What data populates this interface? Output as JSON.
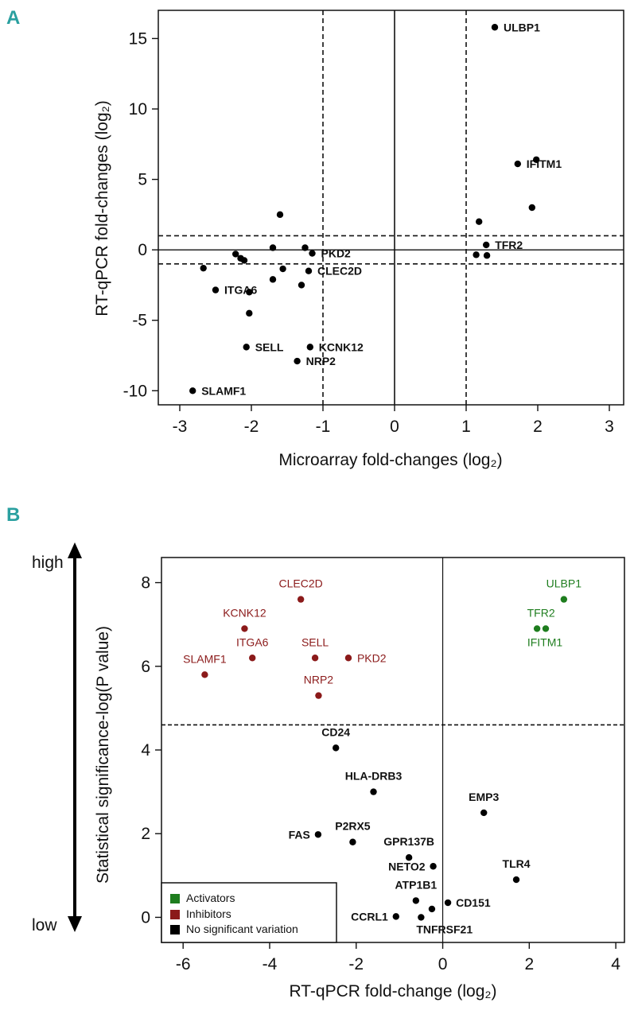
{
  "chart_data": [
    {
      "panel": "A",
      "type": "scatter",
      "xlabel": "Microarray fold-changes (log₂)",
      "ylabel": "RT-qPCR fold-changes (log₂)",
      "xlim": [
        -3.3,
        3.2
      ],
      "ylim": [
        -11,
        17
      ],
      "xticks": [
        -3,
        -2,
        -1,
        0,
        1,
        2,
        3
      ],
      "yticks": [
        -10,
        -5,
        0,
        5,
        10,
        15
      ],
      "vlines_dashed": [
        -1,
        1
      ],
      "vline_solid": 0,
      "hlines_dashed": [
        1,
        -1
      ],
      "hline_solid": 0,
      "points": [
        {
          "x": 1.4,
          "y": 15.8,
          "label": "ULBP1"
        },
        {
          "x": 1.72,
          "y": 6.1,
          "label": "IFITM1"
        },
        {
          "x": 1.98,
          "y": 6.4,
          "label": ""
        },
        {
          "x": 1.92,
          "y": 3.0,
          "label": ""
        },
        {
          "x": 1.18,
          "y": 2.0,
          "label": ""
        },
        {
          "x": 1.28,
          "y": 0.35,
          "label": "TFR2"
        },
        {
          "x": 1.14,
          "y": -0.35,
          "label": ""
        },
        {
          "x": 1.29,
          "y": -0.4,
          "label": ""
        },
        {
          "x": -1.6,
          "y": 2.5,
          "label": ""
        },
        {
          "x": -1.7,
          "y": 0.15,
          "label": ""
        },
        {
          "x": -1.25,
          "y": 0.15,
          "label": ""
        },
        {
          "x": -1.15,
          "y": -0.25,
          "label": "PKD2"
        },
        {
          "x": -2.22,
          "y": -0.3,
          "label": ""
        },
        {
          "x": -2.15,
          "y": -0.6,
          "label": ""
        },
        {
          "x": -2.1,
          "y": -0.75,
          "label": ""
        },
        {
          "x": -2.67,
          "y": -1.3,
          "label": ""
        },
        {
          "x": -1.56,
          "y": -1.35,
          "label": ""
        },
        {
          "x": -1.2,
          "y": -1.5,
          "label": "CLEC2D"
        },
        {
          "x": -1.7,
          "y": -2.1,
          "label": ""
        },
        {
          "x": -1.3,
          "y": -2.5,
          "label": ""
        },
        {
          "x": -2.5,
          "y": -2.85,
          "label": "ITGA6"
        },
        {
          "x": -2.03,
          "y": -3.0,
          "label": ""
        },
        {
          "x": -2.03,
          "y": -4.5,
          "label": ""
        },
        {
          "x": -2.07,
          "y": -6.9,
          "label": "SELL"
        },
        {
          "x": -1.18,
          "y": -6.9,
          "label": "KCNK12"
        },
        {
          "x": -1.36,
          "y": -7.9,
          "label": "NRP2"
        },
        {
          "x": -2.82,
          "y": -10.0,
          "label": "SLAMF1"
        }
      ]
    },
    {
      "panel": "B",
      "type": "scatter",
      "xlabel": "RT-qPCR fold-change (log₂)",
      "ylabel": "Statistical significance-log(P value)",
      "xlim": [
        -6.5,
        4.2
      ],
      "ylim": [
        -0.6,
        8.6
      ],
      "xticks": [
        -6,
        -4,
        -2,
        0,
        2,
        4
      ],
      "yticks": [
        0,
        2,
        4,
        6,
        8
      ],
      "vline_solid": 0,
      "hline_dashed": 4.6,
      "side_labels": {
        "high": "high",
        "low": "low"
      },
      "legend": [
        {
          "name": "Activators",
          "color": "#1e7d1e"
        },
        {
          "name": "Inhibitors",
          "color": "#8b1a1a"
        },
        {
          "name": "No significant variation",
          "color": "#000000"
        }
      ],
      "points": [
        {
          "x": 2.8,
          "y": 7.6,
          "label": "ULBP1",
          "group": "Activators"
        },
        {
          "x": 2.18,
          "y": 6.9,
          "label": "TFR2",
          "group": "Activators"
        },
        {
          "x": 2.38,
          "y": 6.9,
          "label": "IFITM1",
          "group": "Activators"
        },
        {
          "x": -3.28,
          "y": 7.6,
          "label": "CLEC2D",
          "group": "Inhibitors"
        },
        {
          "x": -4.58,
          "y": 6.9,
          "label": "KCNK12",
          "group": "Inhibitors"
        },
        {
          "x": -4.4,
          "y": 6.2,
          "label": "ITGA6",
          "group": "Inhibitors"
        },
        {
          "x": -2.95,
          "y": 6.2,
          "label": "SELL",
          "group": "Inhibitors"
        },
        {
          "x": -2.18,
          "y": 6.2,
          "label": "PKD2",
          "group": "Inhibitors"
        },
        {
          "x": -5.5,
          "y": 5.8,
          "label": "SLAMF1",
          "group": "Inhibitors"
        },
        {
          "x": -2.87,
          "y": 5.3,
          "label": "NRP2",
          "group": "Inhibitors"
        },
        {
          "x": -2.47,
          "y": 4.05,
          "label": "CD24",
          "group": "No significant variation"
        },
        {
          "x": -1.6,
          "y": 3.0,
          "label": "HLA-DRB3",
          "group": "No significant variation"
        },
        {
          "x": 0.95,
          "y": 2.5,
          "label": "EMP3",
          "group": "No significant variation"
        },
        {
          "x": -2.88,
          "y": 1.98,
          "label": "FAS",
          "group": "No significant variation"
        },
        {
          "x": -2.08,
          "y": 1.8,
          "label": "P2RX5",
          "group": "No significant variation"
        },
        {
          "x": -0.78,
          "y": 1.43,
          "label": "GPR137B",
          "group": "No significant variation"
        },
        {
          "x": -0.22,
          "y": 1.22,
          "label": "NETO2",
          "group": "No significant variation"
        },
        {
          "x": 1.7,
          "y": 0.9,
          "label": "TLR4",
          "group": "No significant variation"
        },
        {
          "x": -0.62,
          "y": 0.4,
          "label": "ATP1B1",
          "group": "No significant variation"
        },
        {
          "x": 0.12,
          "y": 0.35,
          "label": "CD151",
          "group": "No significant variation"
        },
        {
          "x": -0.25,
          "y": 0.2,
          "label": "",
          "group": "No significant variation"
        },
        {
          "x": -1.08,
          "y": 0.02,
          "label": "CCRL1",
          "group": "No significant variation"
        },
        {
          "x": -0.5,
          "y": 0.0,
          "label": "TNFRSF21",
          "group": "No significant variation"
        }
      ]
    }
  ]
}
